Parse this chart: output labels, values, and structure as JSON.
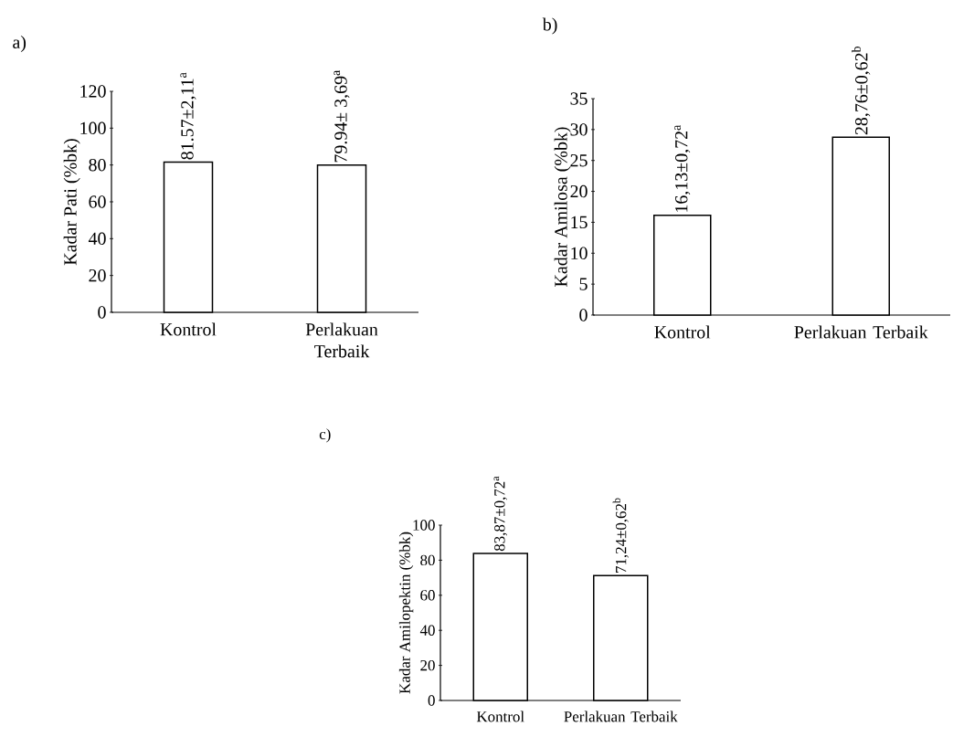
{
  "chart_data": [
    {
      "type": "bar",
      "title": "a)",
      "ylabel": "Kadar Pati (%bk)",
      "categories": [
        "Kontrol",
        "Perlakuan Terbaik"
      ],
      "values": [
        81.57,
        79.94
      ],
      "value_labels": [
        "81.57±2,11$^{a}$",
        "79.94± 3,69$^{a}$"
      ],
      "colors": [
        "#000000",
        "#000000"
      ],
      "ylim": [
        0,
        120
      ],
      "yticks": [
        0,
        20,
        40,
        60,
        80,
        100,
        120
      ]
    },
    {
      "type": "bar",
      "title": "b)",
      "ylabel": "Kadar Amilosa (%bk)",
      "categories": [
        "Kontrol",
        "Perlakuan Terbaik"
      ],
      "values": [
        16.13,
        28.76
      ],
      "value_labels": [
        "16,13±0,72$^{a}$",
        "28,76±0,62$^{b}$"
      ],
      "colors": [
        "#000000",
        "#000000"
      ],
      "ylim": [
        0,
        35
      ],
      "yticks": [
        0,
        5,
        10,
        15,
        20,
        25,
        30,
        35
      ]
    },
    {
      "type": "bar",
      "title": "c)",
      "ylabel": "Kadar Amilopektin (%bk)",
      "categories": [
        "Kontrol",
        "Perlakuan Terbaik"
      ],
      "values": [
        83.87,
        71.24
      ],
      "value_labels": [
        "83,87±0,72$^{a}$",
        "71,24±0,62$^{b}$"
      ],
      "colors": [
        "#000000",
        "#000000"
      ],
      "ylim": [
        0,
        100
      ],
      "yticks": [
        0,
        20,
        40,
        60,
        80,
        100
      ]
    }
  ]
}
